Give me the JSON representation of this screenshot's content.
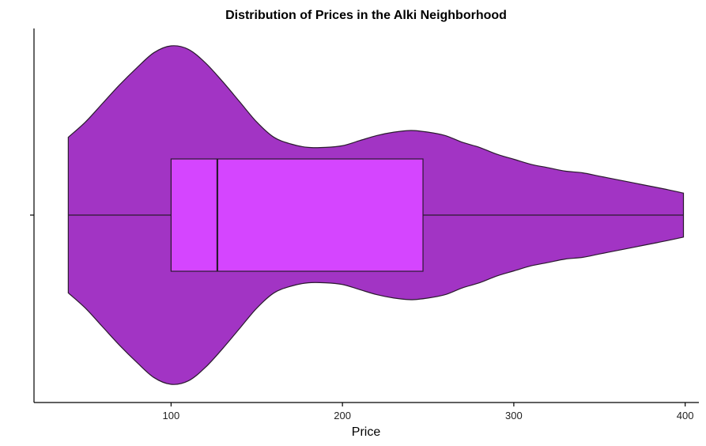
{
  "chart_data": {
    "type": "violin",
    "title": "Distribution of Prices in the Alki Neighborhood",
    "xlabel": "Price",
    "ylabel": "",
    "xlim": [
      20,
      408
    ],
    "xticks": [
      100,
      200,
      300,
      400
    ],
    "grid": false,
    "legend": "none",
    "colors": {
      "violin_fill": "#A234C4",
      "box_fill": "#D545FF",
      "outline": "#2A1A2E"
    },
    "violin_profile": {
      "x": [
        40,
        50,
        60,
        70,
        80,
        90,
        100,
        110,
        120,
        130,
        140,
        150,
        160,
        170,
        180,
        190,
        200,
        210,
        220,
        230,
        240,
        250,
        260,
        270,
        280,
        290,
        300,
        310,
        320,
        330,
        340,
        350,
        360,
        370,
        380,
        390,
        399
      ],
      "density": [
        0.46,
        0.55,
        0.66,
        0.77,
        0.87,
        0.96,
        1.0,
        0.98,
        0.9,
        0.79,
        0.67,
        0.55,
        0.46,
        0.42,
        0.4,
        0.4,
        0.41,
        0.44,
        0.47,
        0.49,
        0.5,
        0.49,
        0.47,
        0.43,
        0.4,
        0.36,
        0.33,
        0.3,
        0.28,
        0.26,
        0.25,
        0.23,
        0.21,
        0.19,
        0.17,
        0.15,
        0.13
      ]
    },
    "box": {
      "min": 40,
      "q1": 100,
      "median": 127,
      "q3": 247,
      "max": 399
    }
  }
}
